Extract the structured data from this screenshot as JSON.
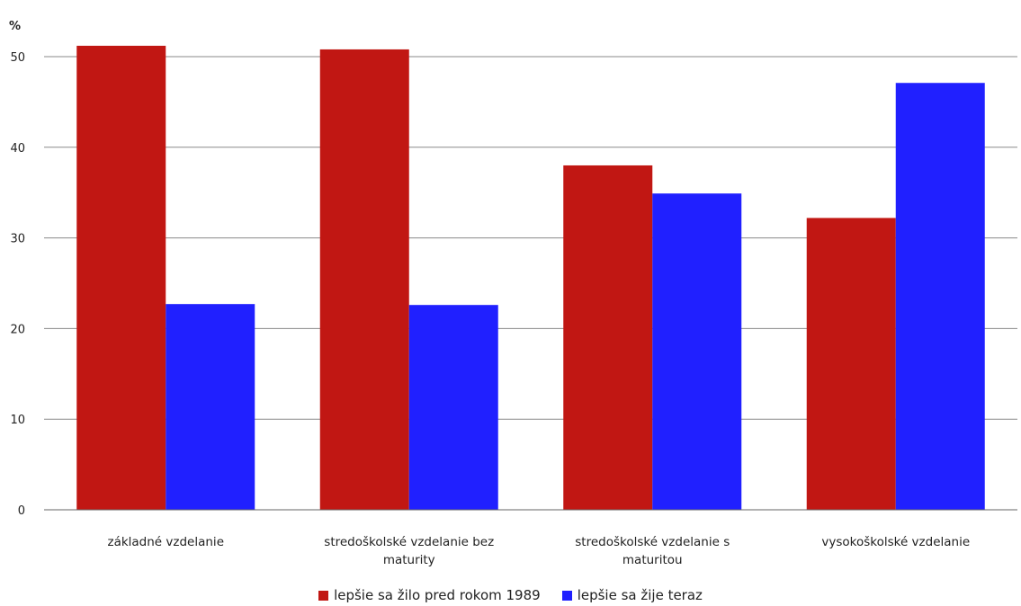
{
  "chart_data": {
    "type": "bar",
    "unit_label": "%",
    "categories": [
      [
        "základné vzdelanie"
      ],
      [
        "stredoškolské vzdelanie bez",
        "maturity"
      ],
      [
        "stredoškolské vzdelanie s",
        "maturitou"
      ],
      [
        "vysokoškolské vzdelanie"
      ]
    ],
    "series": [
      {
        "name": "lepšie sa žilo pred rokom 1989",
        "color": "#c11713",
        "values": [
          51.2,
          50.8,
          38.0,
          32.2
        ]
      },
      {
        "name": "lepšie sa žije teraz",
        "color": "#2020ff",
        "values": [
          22.7,
          22.6,
          34.9,
          47.1
        ]
      }
    ],
    "yticks": [
      0,
      10,
      20,
      30,
      40,
      50
    ],
    "ylim": [
      0,
      50
    ],
    "grid": true,
    "legend_position": "bottom-center"
  }
}
